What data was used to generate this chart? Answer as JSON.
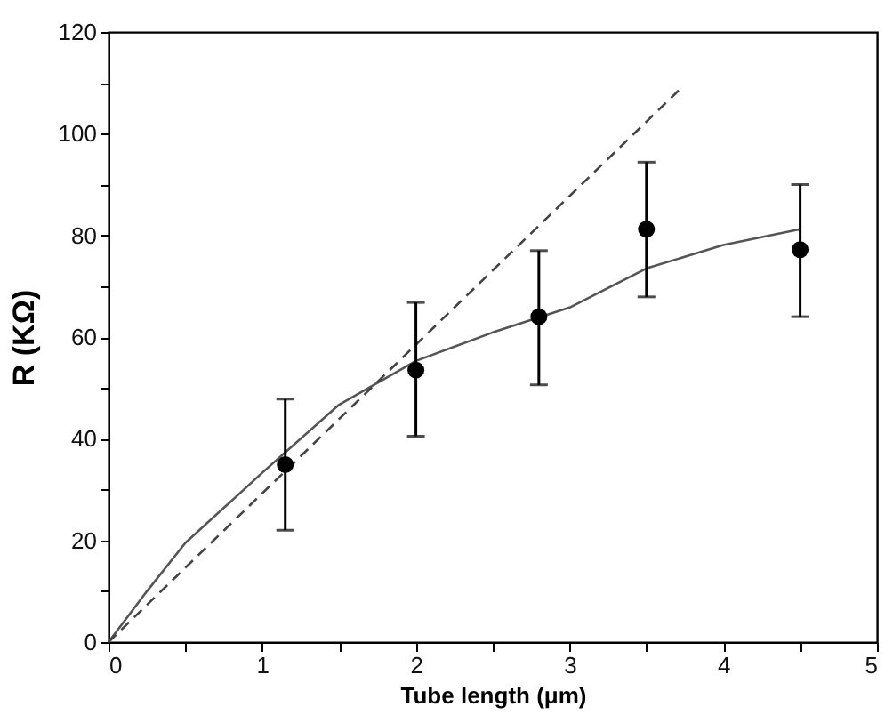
{
  "chart_data": {
    "type": "scatter",
    "xlabel": "Tube length  (μm)",
    "ylabel": "R (KΩ)",
    "xlim": [
      0,
      5
    ],
    "ylim": [
      0,
      120
    ],
    "xticks": [
      0,
      {
        "value": 0.5,
        "label": null
      },
      1,
      {
        "value": 1.5,
        "label": null
      },
      2,
      {
        "value": 2.5,
        "label": null
      },
      3,
      {
        "value": 3.5,
        "label": null
      },
      4,
      {
        "value": 4.5,
        "label": null
      },
      5
    ],
    "yticks": [
      0,
      {
        "value": 10,
        "label": null
      },
      20,
      {
        "value": 30,
        "label": null
      },
      40,
      {
        "value": 50,
        "label": null
      },
      60,
      {
        "value": 70,
        "label": null
      },
      80,
      {
        "value": 90,
        "label": null
      },
      100,
      {
        "value": 110,
        "label": null
      },
      120
    ],
    "series": [
      {
        "type": "line",
        "color": "#555555",
        "line_style": "solid",
        "x": [
          0,
          0.25,
          0.5,
          1,
          1.5,
          2,
          2.5,
          3,
          3.5,
          4,
          4.5
        ],
        "values": [
          0,
          10,
          19.5,
          33.3,
          46.7,
          55.3,
          60.9,
          65.8,
          73.5,
          78.1,
          81.2
        ]
      },
      {
        "type": "line",
        "color": "#444444",
        "line_style": "dashed",
        "x": [
          0,
          3.72
        ],
        "values": [
          0,
          108.8
        ]
      },
      {
        "color": "#000000",
        "marker": "circle",
        "x": [
          1.15,
          2.0,
          2.8,
          3.5,
          4.5
        ],
        "values": [
          34.9,
          53.5,
          64,
          81.2,
          77.2
        ],
        "errors": [
          [
            22,
            47.8
          ],
          [
            40.5,
            66.8
          ],
          [
            50.6,
            77
          ],
          [
            67.9,
            94.4
          ],
          [
            64,
            90
          ]
        ]
      }
    ]
  }
}
